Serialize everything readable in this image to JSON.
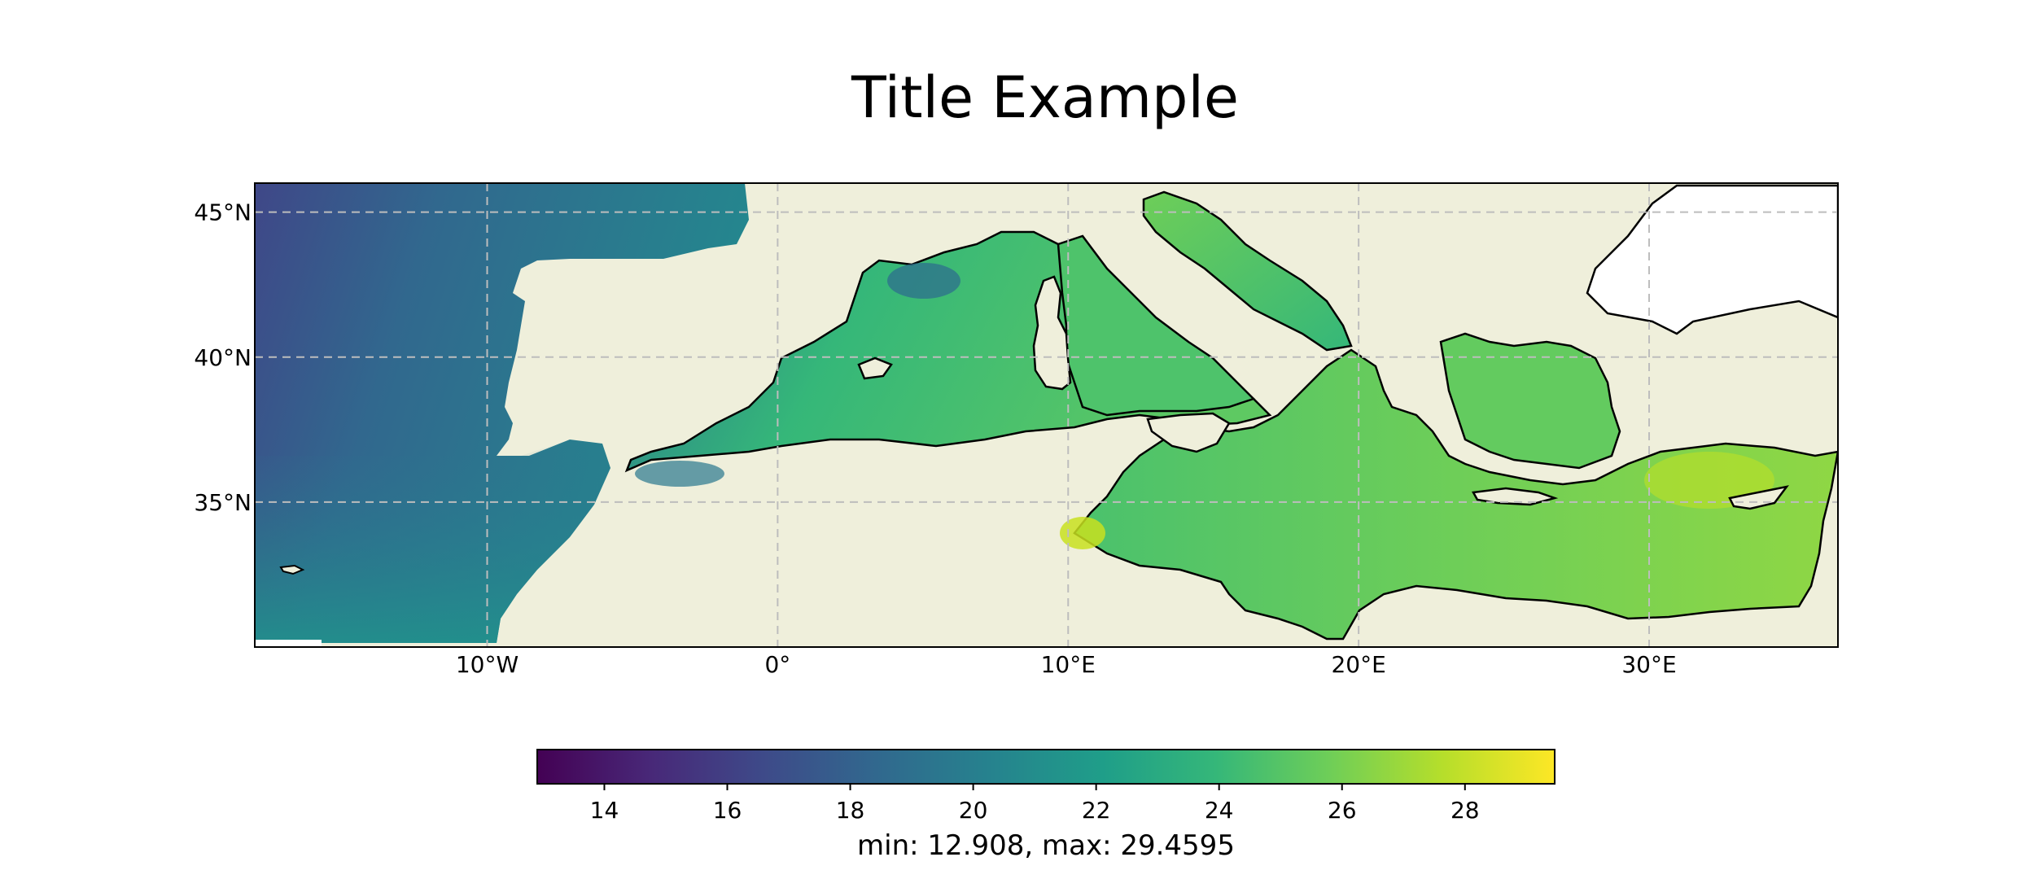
{
  "figure": {
    "title": "Title Example"
  },
  "map": {
    "type": "heatmap",
    "region": "Mediterranean Sea and eastern Atlantic",
    "extent": {
      "lon": [
        -18,
        36.5
      ],
      "lat": [
        30,
        46
      ]
    },
    "gridlines": {
      "style": "dashed",
      "color": "#bdbdbd"
    },
    "land_color": "#efefdb",
    "coast_color": "#000000",
    "lat_ticks": [
      {
        "value": 45,
        "label": "45°N"
      },
      {
        "value": 40,
        "label": "40°N"
      },
      {
        "value": 35,
        "label": "35°N"
      }
    ],
    "lon_ticks": [
      {
        "value": -10,
        "label": "10°W"
      },
      {
        "value": 0,
        "label": "0°"
      },
      {
        "value": 10,
        "label": "10°E"
      },
      {
        "value": 20,
        "label": "20°E"
      },
      {
        "value": 30,
        "label": "30°E"
      }
    ]
  },
  "colorbar": {
    "colormap": "viridis",
    "range": [
      12.908,
      29.4595
    ],
    "ticks": [
      14,
      16,
      18,
      20,
      22,
      24,
      26,
      28
    ],
    "tick_labels": [
      "14",
      "16",
      "18",
      "20",
      "22",
      "24",
      "26",
      "28"
    ],
    "label": "min: 12.908, max: 29.4595",
    "stops": [
      "#440154",
      "#482878",
      "#3e4a89",
      "#31688e",
      "#26828e",
      "#1f9e89",
      "#35b779",
      "#6ece58",
      "#b5de2b",
      "#fde725"
    ]
  }
}
